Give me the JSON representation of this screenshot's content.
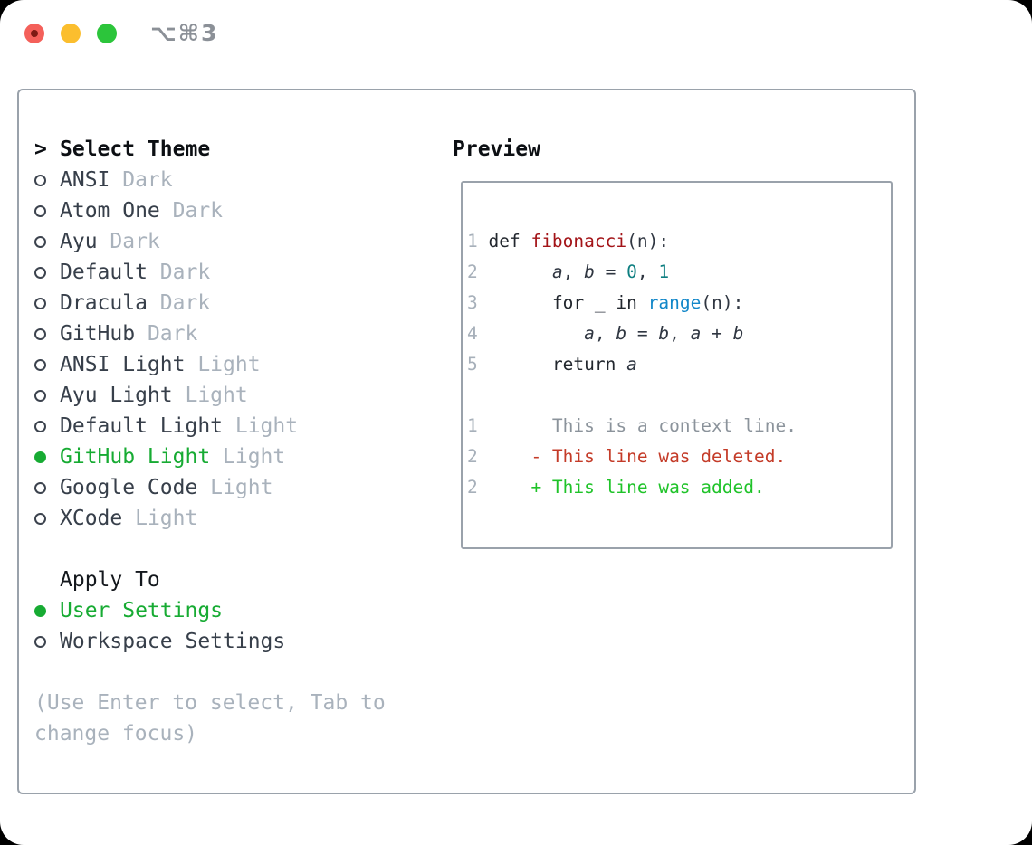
{
  "window": {
    "title": "⌥⌘3"
  },
  "theme_list": {
    "cursor": ">",
    "title": "Select Theme",
    "items": [
      {
        "label": "ANSI",
        "tag": "Dark",
        "selected": false
      },
      {
        "label": "Atom One",
        "tag": "Dark",
        "selected": false
      },
      {
        "label": "Ayu",
        "tag": "Dark",
        "selected": false
      },
      {
        "label": "Default",
        "tag": "Dark",
        "selected": false
      },
      {
        "label": "Dracula",
        "tag": "Dark",
        "selected": false
      },
      {
        "label": "GitHub",
        "tag": "Dark",
        "selected": false
      },
      {
        "label": "ANSI Light",
        "tag": "Light",
        "selected": false
      },
      {
        "label": "Ayu Light",
        "tag": "Light",
        "selected": false
      },
      {
        "label": "Default Light",
        "tag": "Light",
        "selected": false
      },
      {
        "label": "GitHub Light",
        "tag": "Light",
        "selected": true
      },
      {
        "label": "Google Code",
        "tag": "Light",
        "selected": false
      },
      {
        "label": "XCode",
        "tag": "Light",
        "selected": false
      }
    ]
  },
  "apply_to": {
    "title": "Apply To",
    "items": [
      {
        "label": "User Settings",
        "selected": true
      },
      {
        "label": "Workspace Settings",
        "selected": false
      }
    ]
  },
  "footer_hint": [
    "(Use Enter to select, Tab to",
    "change focus)"
  ],
  "preview": {
    "title": "Preview",
    "code_lines": [
      {
        "num": "1",
        "segments": [
          {
            "text": "def ",
            "type": "keyword"
          },
          {
            "text": "fibonacci",
            "type": "function"
          },
          {
            "text": "(n):",
            "type": "plain"
          }
        ]
      },
      {
        "num": "2",
        "segments": [
          {
            "text": "      ",
            "type": "plain"
          },
          {
            "text": "a",
            "type": "variable"
          },
          {
            "text": ", ",
            "type": "plain"
          },
          {
            "text": "b",
            "type": "variable"
          },
          {
            "text": " = ",
            "type": "plain"
          },
          {
            "text": "0",
            "type": "number"
          },
          {
            "text": ", ",
            "type": "plain"
          },
          {
            "text": "1",
            "type": "number"
          }
        ]
      },
      {
        "num": "3",
        "segments": [
          {
            "text": "      ",
            "type": "plain"
          },
          {
            "text": "for",
            "type": "keyword"
          },
          {
            "text": " _ ",
            "type": "plain"
          },
          {
            "text": "in",
            "type": "keyword"
          },
          {
            "text": " ",
            "type": "plain"
          },
          {
            "text": "range",
            "type": "builtin"
          },
          {
            "text": "(n):",
            "type": "plain"
          }
        ]
      },
      {
        "num": "4",
        "segments": [
          {
            "text": "         ",
            "type": "plain"
          },
          {
            "text": "a",
            "type": "variable"
          },
          {
            "text": ", ",
            "type": "plain"
          },
          {
            "text": "b",
            "type": "variable"
          },
          {
            "text": " = ",
            "type": "plain"
          },
          {
            "text": "b",
            "type": "variable"
          },
          {
            "text": ", ",
            "type": "plain"
          },
          {
            "text": "a",
            "type": "variable"
          },
          {
            "text": " + ",
            "type": "plain"
          },
          {
            "text": "b",
            "type": "variable"
          }
        ]
      },
      {
        "num": "5",
        "segments": [
          {
            "text": "      ",
            "type": "plain"
          },
          {
            "text": "return",
            "type": "keyword"
          },
          {
            "text": " ",
            "type": "plain"
          },
          {
            "text": "a",
            "type": "variable"
          }
        ]
      }
    ],
    "diff_lines": [
      {
        "num": "1",
        "body": "      This is a context line.",
        "type": "context"
      },
      {
        "num": "2",
        "body": "    - This line was deleted.",
        "type": "deleted"
      },
      {
        "num": "2",
        "body": "    + This line was added.",
        "type": "added"
      }
    ]
  },
  "colors": {
    "accent_green": "#17ab33",
    "muted": "#a9b2bc",
    "text": "#373f4a",
    "heading": "#0c0f13",
    "code_text": "#2f3641",
    "code_function": "#a31418",
    "code_number": "#0d7e80",
    "code_builtin": "#1287c9",
    "code_line_number": "#a7b0ba",
    "diff_context": "#8b939b",
    "diff_deleted": "#c43b28",
    "diff_added": "#1fc329",
    "traffic_red": "#f4605a",
    "traffic_yellow": "#fbbe2e",
    "traffic_green": "#2cc53b",
    "border_gray": "#9aa2ab",
    "title_gray": "#8b9097"
  }
}
